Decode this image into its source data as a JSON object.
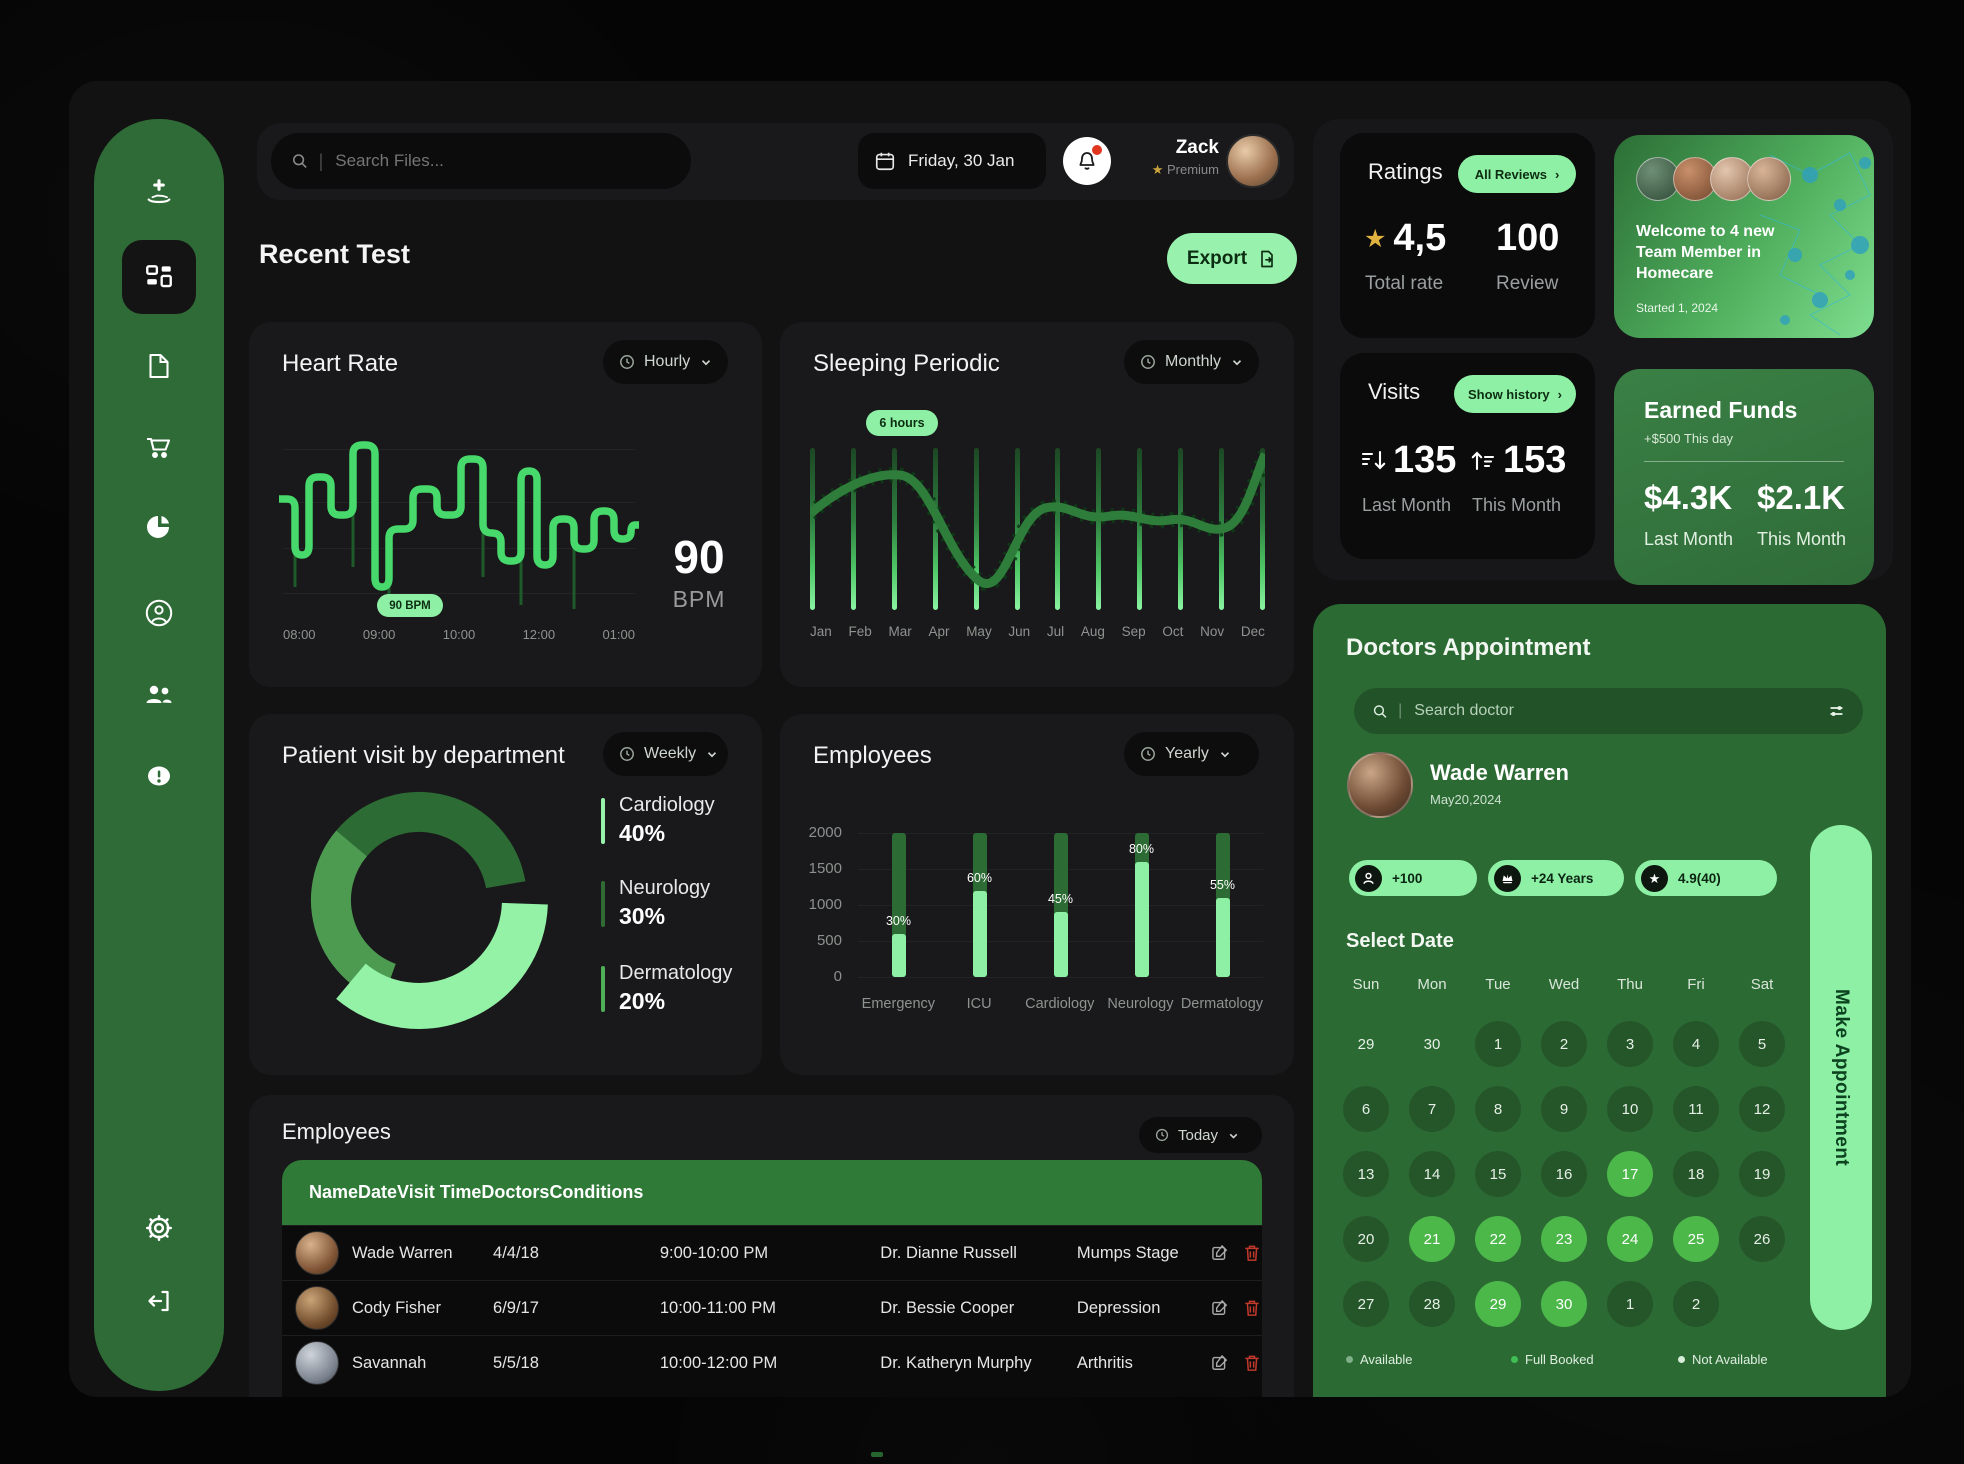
{
  "colors": {
    "accent": "#8ef0a4",
    "sidebar_green": "#2e6b36",
    "panel_green": "#2c6a34",
    "bright_green": "#4cb84a",
    "header_green": "#2f7a37",
    "alert_red": "#e0351f",
    "star_gold": "#caa53e"
  },
  "topbar": {
    "search_placeholder": "Search Files...",
    "date": "Friday, 30 Jan",
    "user_name": "Zack",
    "user_plan": "Premium"
  },
  "page": {
    "heading": "Recent Test",
    "export_label": "Export"
  },
  "heart_rate": {
    "title": "Heart Rate",
    "range": "Hourly",
    "badge": "90 BPM",
    "value": "90",
    "unit": "BPM",
    "ticks": [
      "08:00",
      "09:00",
      "10:00",
      "12:00",
      "01:00"
    ],
    "chart_data": {
      "type": "line",
      "x": [
        "08:00",
        "09:00",
        "10:00",
        "12:00",
        "01:00"
      ],
      "current_bpm": 90
    }
  },
  "sleeping": {
    "title": "Sleeping Periodic",
    "range": "Monthly",
    "badge": "6 hours",
    "months": [
      "Jan",
      "Feb",
      "Mar",
      "Apr",
      "May",
      "Jun",
      "Jul",
      "Aug",
      "Sep",
      "Oct",
      "Nov",
      "Dec"
    ],
    "chart_data": {
      "type": "area",
      "x": [
        "Jan",
        "Feb",
        "Mar",
        "Apr",
        "May",
        "Jun",
        "Jul",
        "Aug",
        "Sep",
        "Oct",
        "Nov",
        "Dec"
      ],
      "annotation": "6 hours"
    }
  },
  "departments": {
    "title": "Patient visit by department",
    "range": "Weekly",
    "legend": [
      {
        "label": "Cardiology",
        "value": "40%"
      },
      {
        "label": "Neurology",
        "value": "30%"
      },
      {
        "label": "Dermatology",
        "value": "20%"
      }
    ],
    "chart_data": {
      "type": "pie",
      "categories": [
        "Cardiology",
        "Neurology",
        "Dermatology"
      ],
      "values": [
        40,
        30,
        20
      ]
    }
  },
  "employees_chart": {
    "title": "Employees",
    "range": "Yearly",
    "yticks": [
      "2000",
      "1500",
      "1000",
      "500",
      "0"
    ],
    "categories": [
      "Emergency",
      "ICU",
      "Cardiology",
      "Neurology",
      "Dermatology"
    ],
    "values": [
      30,
      60,
      45,
      80,
      55
    ],
    "chart_data": {
      "type": "bar",
      "categories": [
        "Emergency",
        "ICU",
        "Cardiology",
        "Neurology",
        "Dermatology"
      ],
      "values_pct": [
        30,
        60,
        45,
        80,
        55
      ],
      "ylim": [
        0,
        2000
      ]
    }
  },
  "employees_table": {
    "title": "Employees",
    "range": "Today",
    "columns": [
      "Name",
      "Date",
      "Visit Time",
      "Doctors",
      "Conditions"
    ],
    "rows": [
      {
        "name": "Wade Warren",
        "date": "4/4/18",
        "time": "9:00-10:00 PM",
        "doctor": "Dr. Dianne Russell",
        "condition": "Mumps Stage",
        "avatar": "av1"
      },
      {
        "name": "Cody Fisher",
        "date": "6/9/17",
        "time": "10:00-11:00 PM",
        "doctor": "Dr. Bessie Cooper",
        "condition": "Depression",
        "avatar": "av2"
      },
      {
        "name": "Savannah",
        "date": "5/5/18",
        "time": "10:00-12:00 PM",
        "doctor": "Dr. Katheryn Murphy",
        "condition": "Arthritis",
        "avatar": "av3"
      }
    ]
  },
  "ratings": {
    "title": "Ratings",
    "button": "All Reviews",
    "rate": "4,5",
    "rate_label": "Total rate",
    "reviews": "100",
    "reviews_label": "Review"
  },
  "welcome": {
    "message": "Welcome to 4 new Team Member in Homecare",
    "started": "Started 1, 2024"
  },
  "visits": {
    "title": "Visits",
    "button": "Show history",
    "last": "135",
    "last_label": "Last Month",
    "this": "153",
    "this_label": "This Month"
  },
  "earned": {
    "title": "Earned Funds",
    "delta": "+$500 This day",
    "last": "$4.3K",
    "last_label": "Last Month",
    "this": "$2.1K",
    "this_label": "This Month"
  },
  "appointment": {
    "title": "Doctors Appointment",
    "search_placeholder": "Search doctor",
    "doctor_name": "Wade Warren",
    "doctor_date": "May20,2024",
    "badges": [
      {
        "label": "+100"
      },
      {
        "label": "+24 Years"
      },
      {
        "label": "4.9(40)"
      }
    ],
    "select_date": "Select Date",
    "day_headers": [
      "Sun",
      "Mon",
      "Tue",
      "Wed",
      "Thu",
      "Fri",
      "Sat"
    ],
    "days": [
      {
        "d": "29",
        "state": "dim"
      },
      {
        "d": "30",
        "state": "dim"
      },
      {
        "d": "1"
      },
      {
        "d": "2"
      },
      {
        "d": "3"
      },
      {
        "d": "4"
      },
      {
        "d": "5"
      },
      {
        "d": "6"
      },
      {
        "d": "7"
      },
      {
        "d": "8"
      },
      {
        "d": "9"
      },
      {
        "d": "10"
      },
      {
        "d": "11"
      },
      {
        "d": "12"
      },
      {
        "d": "13"
      },
      {
        "d": "14"
      },
      {
        "d": "15"
      },
      {
        "d": "16"
      },
      {
        "d": "17",
        "state": "active"
      },
      {
        "d": "18"
      },
      {
        "d": "19"
      },
      {
        "d": "20"
      },
      {
        "d": "21",
        "state": "active"
      },
      {
        "d": "22",
        "state": "active"
      },
      {
        "d": "23",
        "state": "active"
      },
      {
        "d": "24",
        "state": "active"
      },
      {
        "d": "25",
        "state": "active"
      },
      {
        "d": "26"
      },
      {
        "d": "27"
      },
      {
        "d": "28"
      },
      {
        "d": "29",
        "state": "active"
      },
      {
        "d": "30",
        "state": "active"
      },
      {
        "d": "1"
      },
      {
        "d": "2"
      },
      {
        "d": "",
        "state": "empty"
      }
    ],
    "legend": [
      {
        "label": "Available"
      },
      {
        "label": "Full Booked"
      },
      {
        "label": "Not Available"
      }
    ],
    "cta": "Make Appointment"
  }
}
